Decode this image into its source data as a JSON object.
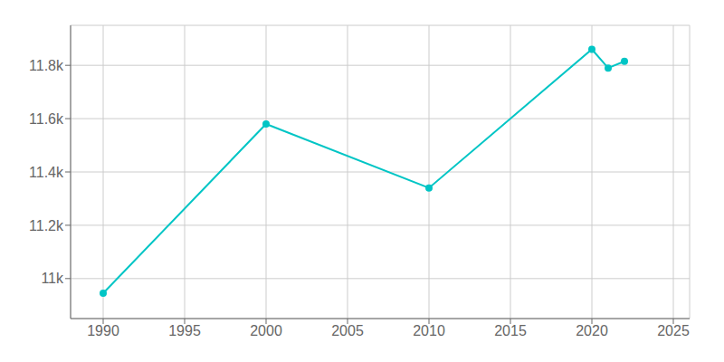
{
  "chart_data": {
    "type": "line",
    "x": [
      1990,
      2000,
      2010,
      2020,
      2021,
      2022
    ],
    "values": [
      10945,
      11580,
      11340,
      11860,
      11790,
      11815
    ],
    "color": "#00C5C5",
    "marker": "circle",
    "xlim": [
      1988,
      2026
    ],
    "ylim": [
      10850,
      11950
    ],
    "xticks": [
      1990,
      1995,
      2000,
      2005,
      2010,
      2015,
      2020,
      2025
    ],
    "yticks": [
      {
        "value": 11000,
        "label": "11k"
      },
      {
        "value": 11200,
        "label": "11.2k"
      },
      {
        "value": 11400,
        "label": "11.4k"
      },
      {
        "value": 11600,
        "label": "11.6k"
      },
      {
        "value": 11800,
        "label": "11.8k"
      }
    ],
    "grid": true
  }
}
